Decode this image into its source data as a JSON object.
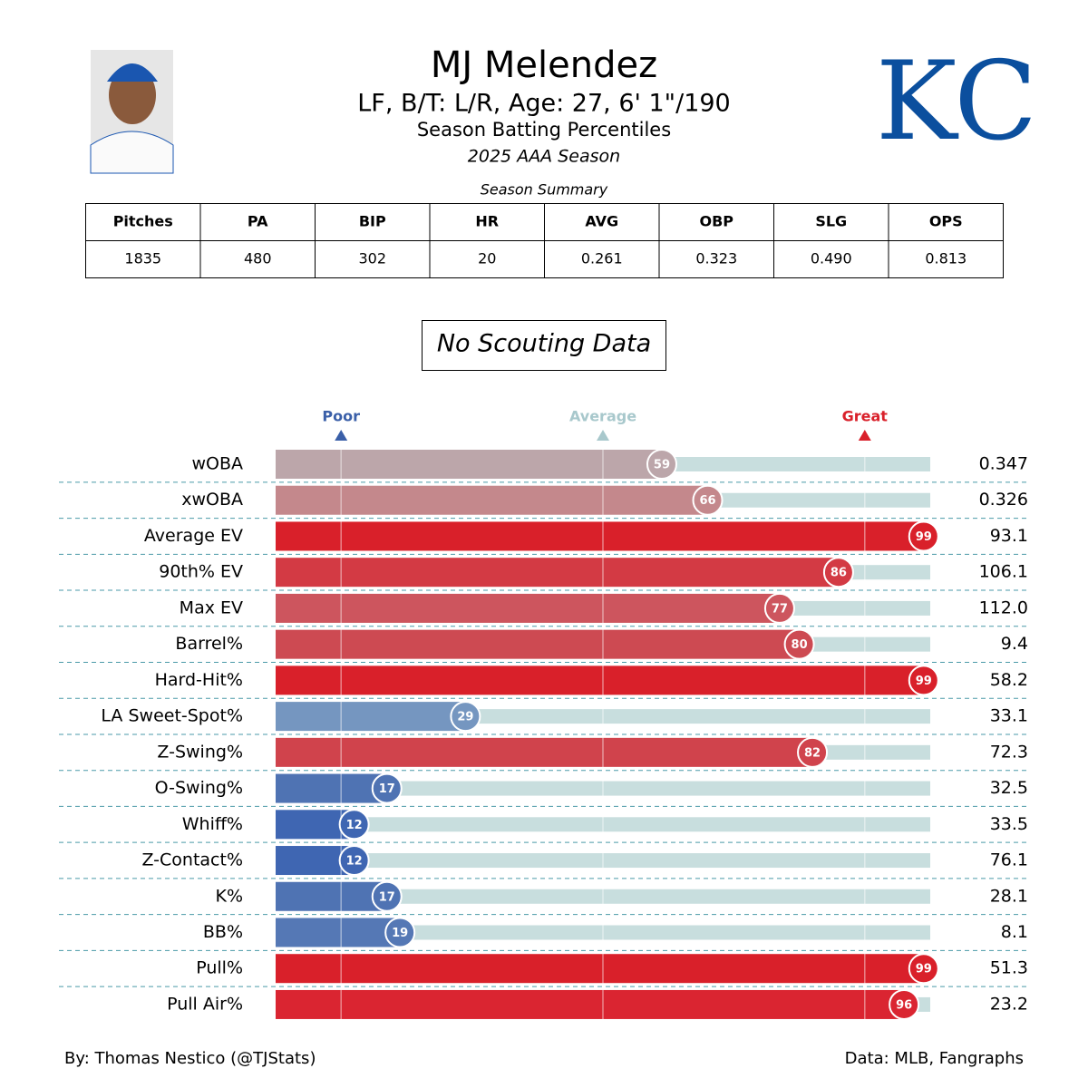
{
  "header": {
    "name": "MJ Melendez",
    "bio": "LF, B/T: L/R, Age: 27, 6' 1\"/190",
    "subtitle": "Season Batting Percentiles",
    "season": "2025 AAA Season",
    "team_logo": "KC"
  },
  "table": {
    "title": "Season Summary",
    "headers": [
      "Pitches",
      "PA",
      "BIP",
      "HR",
      "AVG",
      "OBP",
      "SLG",
      "OPS"
    ],
    "rows": [
      [
        "1835",
        "480",
        "302",
        "20",
        "0.261",
        "0.323",
        "0.490",
        "0.813"
      ]
    ]
  },
  "scouting_note": "No Scouting Data",
  "chart_data": {
    "type": "percentile_bar",
    "categories": [
      "wOBA",
      "xwOBA",
      "Average EV",
      "90th% EV",
      "Max EV",
      "Barrel%",
      "Hard-Hit%",
      "LA Sweet-Spot%",
      "Z-Swing%",
      "O-Swing%",
      "Whiff%",
      "Z-Contact%",
      "K%",
      "BB%",
      "Pull%",
      "Pull Air%"
    ],
    "values": [
      59,
      66,
      99,
      86,
      77,
      80,
      99,
      29,
      82,
      17,
      12,
      12,
      17,
      19,
      99,
      96
    ],
    "stats": [
      "0.347",
      "0.326",
      "93.1",
      "106.1",
      "112.0",
      "9.4",
      "58.2",
      "33.1",
      "72.3",
      "32.5",
      "33.5",
      "76.1",
      "28.1",
      "8.1",
      "51.3",
      "23.2"
    ],
    "colors": [
      "#bca6aa",
      "#c4888c",
      "#d9202a",
      "#d33a44",
      "#cd555e",
      "#cd4a52",
      "#d9202a",
      "#7596c0",
      "#d0434c",
      "#4f73b3",
      "#3f66b2",
      "#3f66b2",
      "#4f73b3",
      "#5578b5",
      "#d9202a",
      "#da2531"
    ],
    "track_color": "#c8dede",
    "xlim": [
      0,
      100
    ],
    "markers": [
      {
        "value": 10,
        "label": "Poor",
        "color": "#3a5fa8"
      },
      {
        "value": 50,
        "label": "Average",
        "color": "#a8c8cc"
      },
      {
        "value": 90,
        "label": "Great",
        "color": "#d9202a"
      }
    ]
  },
  "footer": {
    "left": "By: Thomas Nestico (@TJStats)",
    "right": "Data: MLB, Fangraphs"
  }
}
